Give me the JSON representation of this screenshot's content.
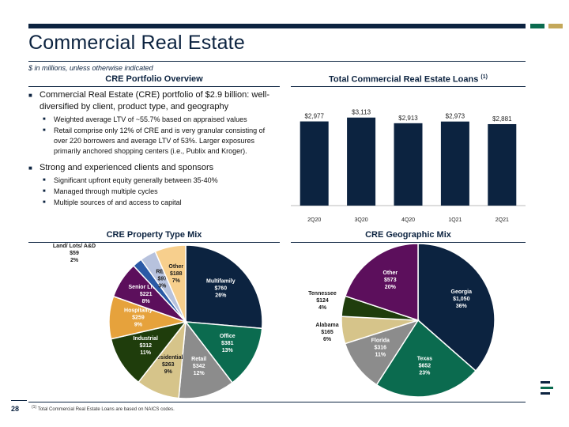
{
  "header": {
    "title": "Commercial Real Estate",
    "subtitle": "$ in millions, unless otherwise indicated"
  },
  "overview": {
    "heading": "CRE Portfolio Overview",
    "bullets": [
      {
        "text": "Commercial Real Estate (CRE) portfolio of $2.9 billion: well-diversified by client, product type, and geography",
        "sub": [
          "Weighted average LTV of ~55.7% based on appraised values",
          "Retail comprise only 12% of CRE and is very granular consisting of over 220 borrowers and average LTV of 53%. Larger exposures primarily anchored shopping centers (i.e., Publix and Kroger)."
        ]
      },
      {
        "text": "Strong and experienced clients and sponsors",
        "sub": [
          "Significant upfront equity generally between 35-40%",
          "Managed through multiple cycles",
          "Multiple sources of and access to capital"
        ]
      }
    ]
  },
  "chart_data": [
    {
      "type": "bar",
      "title": "Total Commercial Real Estate Loans",
      "title_footnote": "(1)",
      "categories": [
        "2Q20",
        "3Q20",
        "4Q20",
        "1Q21",
        "2Q21"
      ],
      "values": [
        2977,
        3113,
        2913,
        2973,
        2881
      ],
      "value_labels": [
        "$2,977",
        "$3,113",
        "$2,913",
        "$2,973",
        "$2,881"
      ],
      "color": "#0c2340",
      "ylim": [
        0,
        3300
      ]
    },
    {
      "type": "pie",
      "title": "CRE Property Type Mix",
      "slices": [
        {
          "label": "Multifamily",
          "value": 760,
          "value_label": "$760",
          "pct": "26%",
          "color": "#0c2340"
        },
        {
          "label": "Office",
          "value": 381,
          "value_label": "$381",
          "pct": "13%",
          "color": "#0b6b4f"
        },
        {
          "label": "Retail",
          "value": 342,
          "value_label": "$342",
          "pct": "12%",
          "color": "#8c8c8c"
        },
        {
          "label": "Residential",
          "value": 263,
          "value_label": "$263",
          "pct": "9%",
          "color": "#d6c48a"
        },
        {
          "label": "Industrial",
          "value": 312,
          "value_label": "$312",
          "pct": "11%",
          "color": "#1f3d0c"
        },
        {
          "label": "Hospitality",
          "value": 259,
          "value_label": "$259",
          "pct": "9%",
          "color": "#e6a23c"
        },
        {
          "label": "Senior Living",
          "value": 221,
          "value_label": "$221",
          "pct": "8%",
          "color": "#5c0f5c"
        },
        {
          "label": "Land/ Lots/ A&D",
          "value": 59,
          "value_label": "$59",
          "pct": "2%",
          "color": "#2b5aa6"
        },
        {
          "label": "REIT",
          "value": 97,
          "value_label": "$97",
          "pct": "3%",
          "color": "#b7c2dd"
        },
        {
          "label": "Other",
          "value": 188,
          "value_label": "$188",
          "pct": "7%",
          "color": "#f7cf8d"
        }
      ]
    },
    {
      "type": "pie",
      "title": "CRE Geographic Mix",
      "slices": [
        {
          "label": "Georgia",
          "value": 1050,
          "value_label": "$1,050",
          "pct": "36%",
          "color": "#0c2340"
        },
        {
          "label": "Texas",
          "value": 652,
          "value_label": "$652",
          "pct": "23%",
          "color": "#0b6b4f"
        },
        {
          "label": "Florida",
          "value": 316,
          "value_label": "$316",
          "pct": "11%",
          "color": "#8c8c8c"
        },
        {
          "label": "Alabama",
          "value": 165,
          "value_label": "$165",
          "pct": "6%",
          "color": "#d6c48a"
        },
        {
          "label": "Tennessee",
          "value": 124,
          "value_label": "$124",
          "pct": "4%",
          "color": "#1f3d0c"
        },
        {
          "label": "Other",
          "value": 573,
          "value_label": "$573",
          "pct": "20%",
          "color": "#5c0f5c"
        }
      ]
    }
  ],
  "footer": {
    "page": "28",
    "note_mark": "(1)",
    "note": "Total Commercial Real Estate Loans are based on NAICS codes."
  }
}
